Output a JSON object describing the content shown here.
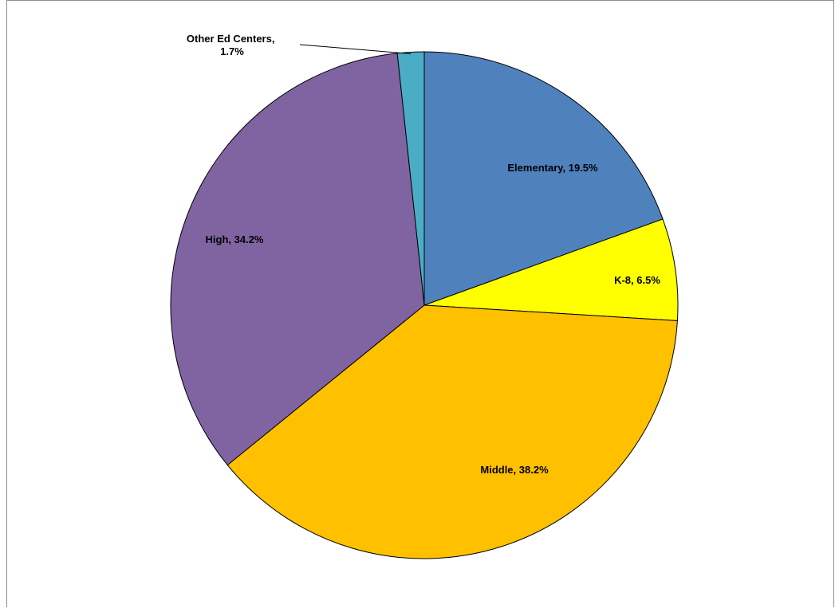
{
  "chart_data": {
    "type": "pie",
    "title": "",
    "categories": [
      "Elementary",
      "K-8",
      "Middle",
      "High",
      "Other Ed Centers"
    ],
    "values": [
      19.5,
      6.5,
      38.2,
      34.2,
      1.7
    ],
    "colors": [
      "#4f81bd",
      "#ffff00",
      "#ffc000",
      "#8064a2",
      "#4bacc6"
    ],
    "labels": [
      "Elementary, 19.5%",
      "K-8, 6.5%",
      "Middle, 38.2%",
      "High, 34.2%",
      "Other Ed Centers,"
    ],
    "label_extra": "1.7%",
    "start_angle": "12 o'clock",
    "direction": "clockwise",
    "legend": "none"
  }
}
